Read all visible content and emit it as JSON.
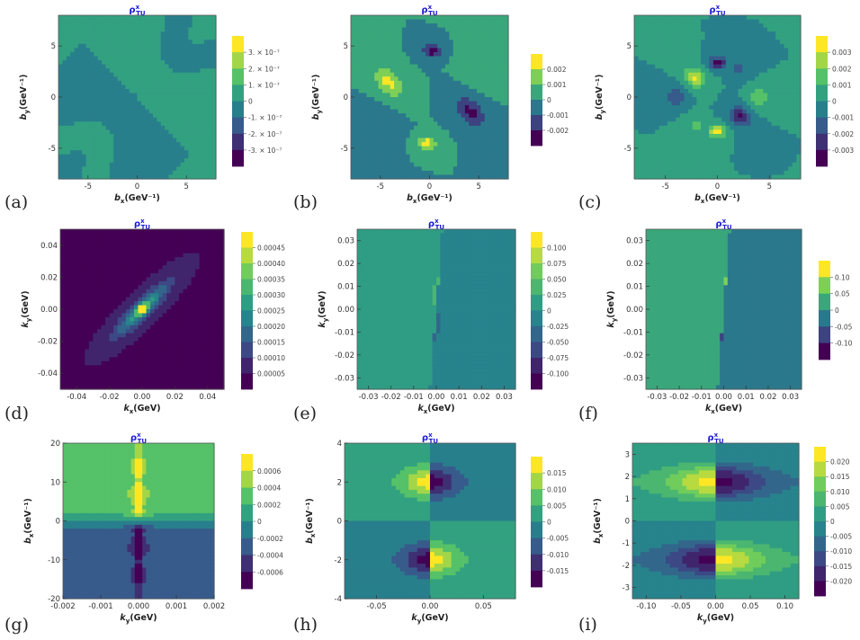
{
  "figure": {
    "panels": [
      {
        "label": "(a)",
        "title_base": "ρ",
        "title_sup": "x",
        "title_sub": "TU",
        "chart_data": {
          "type": "heatmap",
          "x_name": "b",
          "x_sub": "x",
          "x_unit": "(GeV⁻¹)",
          "y_name": "b",
          "y_sub": "y",
          "y_unit": "(GeV⁻¹)",
          "xlim": [
            -8,
            8
          ],
          "ylim": [
            -8,
            8
          ],
          "xticks": [
            "-5",
            "0",
            "5"
          ],
          "xtick_values": [
            -5,
            0,
            5
          ],
          "yticks": [
            "-5",
            "0",
            "5"
          ],
          "ytick_values": [
            -5,
            0,
            5
          ],
          "legend": [
            "3. × 10⁻⁷",
            "2. × 10⁻⁷",
            "1. × 10⁻⁷",
            "0",
            "-1. × 10⁻⁷",
            "-2. × 10⁻⁷",
            "-3. × 10⁻⁷"
          ],
          "pattern": "quadrupole_diag",
          "scale_max": 3.5e-07
        }
      },
      {
        "label": "(b)",
        "title_base": "ρ",
        "title_sup": "x",
        "title_sub": "TU",
        "chart_data": {
          "type": "heatmap",
          "x_name": "b",
          "x_sub": "x",
          "x_unit": "(GeV⁻¹)",
          "y_name": "b",
          "y_sub": "y",
          "y_unit": "(GeV⁻¹)",
          "xlim": [
            -8,
            8
          ],
          "ylim": [
            -8,
            8
          ],
          "xticks": [
            "-5",
            "0",
            "5"
          ],
          "xtick_values": [
            -5,
            0,
            5
          ],
          "yticks": [
            "-5",
            "0",
            "5"
          ],
          "ytick_values": [
            -5,
            0,
            5
          ],
          "legend": [
            "0.002",
            "0.001",
            "0",
            "-0.001",
            "-0.002"
          ],
          "pattern": "octupole",
          "scale_max": 0.0025
        }
      },
      {
        "label": "(c)",
        "title_base": "ρ",
        "title_sup": "x",
        "title_sub": "TU",
        "chart_data": {
          "type": "heatmap",
          "x_name": "b",
          "x_sub": "x",
          "x_unit": "(GeV⁻¹)",
          "y_name": "b",
          "y_sub": "y",
          "y_unit": "(GeV⁻¹)",
          "xlim": [
            -8,
            8
          ],
          "ylim": [
            -8,
            8
          ],
          "xticks": [
            "-5",
            "0",
            "5"
          ],
          "xtick_values": [
            -5,
            0,
            5
          ],
          "yticks": [
            "-5",
            "0",
            "5"
          ],
          "ytick_values": [
            -5,
            0,
            5
          ],
          "legend": [
            "0.003",
            "0.002",
            "0.001",
            "0",
            "-0.001",
            "-0.002",
            "-0.003"
          ],
          "pattern": "multipole",
          "scale_max": 0.0035
        }
      },
      {
        "label": "(d)",
        "title_base": "ρ",
        "title_sup": "x",
        "title_sub": "TU",
        "chart_data": {
          "type": "heatmap",
          "x_name": "k",
          "x_sub": "x",
          "x_unit": "(GeV)",
          "y_name": "k",
          "y_sub": "y",
          "y_unit": "(GeV)",
          "xlim": [
            -0.05,
            0.05
          ],
          "ylim": [
            -0.05,
            0.05
          ],
          "xticks": [
            "-0.04",
            "-0.02",
            "0.00",
            "0.02",
            "0.04"
          ],
          "xtick_values": [
            -0.04,
            -0.02,
            0,
            0.02,
            0.04
          ],
          "yticks": [
            "-0.04",
            "-0.02",
            "0.00",
            "0.02",
            "0.04"
          ],
          "ytick_values": [
            -0.04,
            -0.02,
            0,
            0.02,
            0.04
          ],
          "legend": [
            "0.00045",
            "0.00040",
            "0.00035",
            "0.00030",
            "0.00025",
            "0.00020",
            "0.00015",
            "0.00010",
            "0.00005"
          ],
          "pattern": "positive_diag",
          "scale_min": 0,
          "scale_max": 0.0005
        }
      },
      {
        "label": "(e)",
        "title_base": "ρ",
        "title_sup": "x",
        "title_sub": "TU",
        "chart_data": {
          "type": "heatmap",
          "x_name": "k",
          "x_sub": "x",
          "x_unit": "(GeV)",
          "y_name": "k",
          "y_sub": "y",
          "y_unit": "(GeV)",
          "xlim": [
            -0.035,
            0.035
          ],
          "ylim": [
            -0.035,
            0.035
          ],
          "xticks": [
            "-0.03",
            "-0.02",
            "-0.01",
            "0.00",
            "0.01",
            "0.02",
            "0.03"
          ],
          "xtick_values": [
            -0.03,
            -0.02,
            -0.01,
            0,
            0.01,
            0.02,
            0.03
          ],
          "yticks": [
            "-0.03",
            "-0.02",
            "-0.01",
            "0.00",
            "0.01",
            "0.02",
            "0.03"
          ],
          "ytick_values": [
            -0.03,
            -0.02,
            -0.01,
            0,
            0.01,
            0.02,
            0.03
          ],
          "legend": [
            "0.100",
            "0.075",
            "0.050",
            "0.025",
            "0",
            "-0.025",
            "-0.050",
            "-0.075",
            "-0.100"
          ],
          "pattern": "k_dipole",
          "scale_max": 0.1125
        }
      },
      {
        "label": "(f)",
        "title_base": "ρ",
        "title_sup": "x",
        "title_sub": "TU",
        "chart_data": {
          "type": "heatmap",
          "x_name": "k",
          "x_sub": "x",
          "x_unit": "(GeV)",
          "y_name": "k",
          "y_sub": "y",
          "y_unit": "(GeV)",
          "xlim": [
            -0.035,
            0.035
          ],
          "ylim": [
            -0.035,
            0.035
          ],
          "xticks": [
            "-0.03",
            "-0.02",
            "-0.01",
            "0.00",
            "0.01",
            "0.02",
            "0.03"
          ],
          "xtick_values": [
            -0.03,
            -0.02,
            -0.01,
            0,
            0.01,
            0.02,
            0.03
          ],
          "yticks": [
            "-0.03",
            "-0.02",
            "-0.01",
            "0.00",
            "0.01",
            "0.02",
            "0.03"
          ],
          "ytick_values": [
            -0.03,
            -0.02,
            -0.01,
            0,
            0.01,
            0.02,
            0.03
          ],
          "legend": [
            "0.10",
            "0.05",
            "0",
            "-0.05",
            "-0.10"
          ],
          "pattern": "k_dipole_wide",
          "scale_max": 0.125
        }
      },
      {
        "label": "(g)",
        "title_base": "ρ",
        "title_sup": "x",
        "title_sub": "TU",
        "chart_data": {
          "type": "heatmap",
          "x_name": "k",
          "x_sub": "y",
          "x_unit": "(GeV)",
          "y_name": "b",
          "y_sub": "x",
          "y_unit": "(GeV⁻¹)",
          "xlim": [
            -0.002,
            0.002
          ],
          "ylim": [
            -20,
            20
          ],
          "xticks": [
            "-0.002",
            "-0.001",
            "0.000",
            "0.001",
            "0.002"
          ],
          "xtick_values": [
            -0.002,
            -0.001,
            0,
            0.001,
            0.002
          ],
          "yticks": [
            "-20",
            "-10",
            "0",
            "10",
            "20"
          ],
          "ytick_values": [
            -20,
            -10,
            0,
            10,
            20
          ],
          "legend": [
            "0.0006",
            "0.0004",
            "0.0002",
            "0",
            "-0.0002",
            "-0.0004",
            "-0.0006"
          ],
          "pattern": "vertical_split",
          "scale_max": 0.0007
        }
      },
      {
        "label": "(h)",
        "title_base": "ρ",
        "title_sup": "x",
        "title_sub": "TU",
        "chart_data": {
          "type": "heatmap",
          "x_name": "k",
          "x_sub": "y",
          "x_unit": "(GeV)",
          "y_name": "b",
          "y_sub": "x",
          "y_unit": "(GeV⁻¹)",
          "xlim": [
            -0.08,
            0.08
          ],
          "ylim": [
            -4,
            4
          ],
          "xticks": [
            "-0.05",
            "0.00",
            "0.05"
          ],
          "xtick_values": [
            -0.05,
            0,
            0.05
          ],
          "yticks": [
            "-4",
            "-2",
            "0",
            "2",
            "4"
          ],
          "ytick_values": [
            -4,
            -2,
            0,
            2,
            4
          ],
          "legend": [
            "0.015",
            "0.010",
            "0.005",
            "0",
            "-0.005",
            "-0.010",
            "-0.015"
          ],
          "pattern": "lens_narrow",
          "scale_max": 0.0175
        }
      },
      {
        "label": "(i)",
        "title_base": "ρ",
        "title_sup": "x",
        "title_sub": "TU",
        "chart_data": {
          "type": "heatmap",
          "x_name": "k",
          "x_sub": "y",
          "x_unit": "(GeV)",
          "y_name": "b",
          "y_sub": "x",
          "y_unit": "(GeV⁻¹)",
          "xlim": [
            -0.12,
            0.12
          ],
          "ylim": [
            -3.5,
            3.5
          ],
          "xticks": [
            "-0.10",
            "-0.05",
            "0.00",
            "0.05",
            "0.10"
          ],
          "xtick_values": [
            -0.1,
            -0.05,
            0,
            0.05,
            0.1
          ],
          "yticks": [
            "-3",
            "-2",
            "-1",
            "0",
            "1",
            "2",
            "3"
          ],
          "ytick_values": [
            -3,
            -2,
            -1,
            0,
            1,
            2,
            3
          ],
          "legend": [
            "0.020",
            "0.015",
            "0.010",
            "0.005",
            "0",
            "-0.005",
            "-0.010",
            "-0.015",
            "-0.020"
          ],
          "pattern": "lens_wide",
          "scale_max": 0.0225
        }
      }
    ]
  }
}
